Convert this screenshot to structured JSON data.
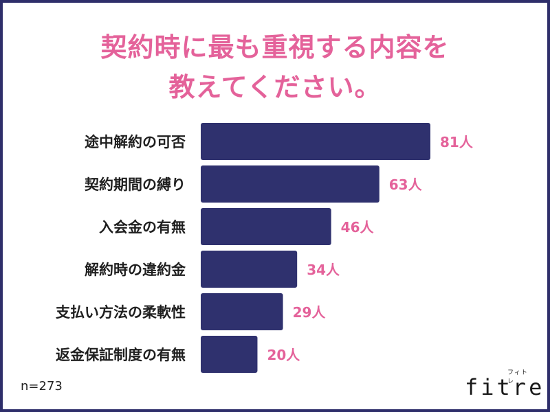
{
  "title": {
    "line1": "契約時に最も重視する内容を",
    "line2": "教えてください。"
  },
  "note": "n=273",
  "logo": {
    "text": "fitre",
    "kana": "フィトレ"
  },
  "colors": {
    "bar": "#2f316e",
    "value": "#e4629a",
    "title": "#e4629a",
    "frame": "#2e2e6a",
    "label": "#1f1f1f"
  },
  "chart_data": {
    "type": "bar",
    "orientation": "horizontal",
    "categories": [
      "途中解約の可否",
      "契約期間の縛り",
      "入会金の有無",
      "解約時の違約金",
      "支払い方法の柔軟性",
      "返金保証制度の有無"
    ],
    "values": [
      81,
      63,
      46,
      34,
      29,
      20
    ],
    "value_labels": [
      "81人",
      "63人",
      "46人",
      "34人",
      "29人",
      "20人"
    ],
    "xlim": [
      0,
      81
    ]
  }
}
